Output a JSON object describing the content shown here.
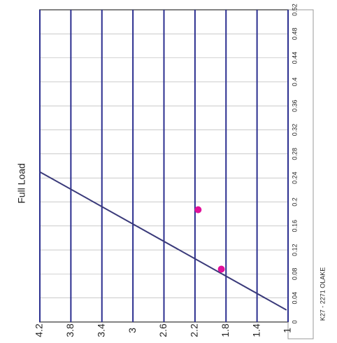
{
  "chart_data": {
    "type": "scatter",
    "title": "Full Load",
    "annotation": "K27 - 2271 OLAKE",
    "xlim": [
      0,
      0.52
    ],
    "xticks": [
      0,
      0.04,
      0.08,
      0.12,
      0.16,
      0.2,
      0.24,
      0.28,
      0.32,
      0.36,
      0.4,
      0.44,
      0.48,
      0.52
    ],
    "ylim": [
      1,
      4.2
    ],
    "yticks": [
      1,
      1.4,
      1.8,
      2.2,
      2.6,
      3,
      3.4,
      3.8,
      4.2
    ],
    "grid": true,
    "grid_color": "#2b2f8f",
    "series": [
      {
        "color": "#3a3a7a",
        "x": [
          0.02,
          0.25
        ],
        "values": [
          1.02,
          4.2
        ],
        "style": "line"
      },
      {
        "color": "#e0109a",
        "x": [
          0.088,
          0.187
        ],
        "values": [
          1.86,
          2.16
        ],
        "style": "points"
      }
    ]
  }
}
